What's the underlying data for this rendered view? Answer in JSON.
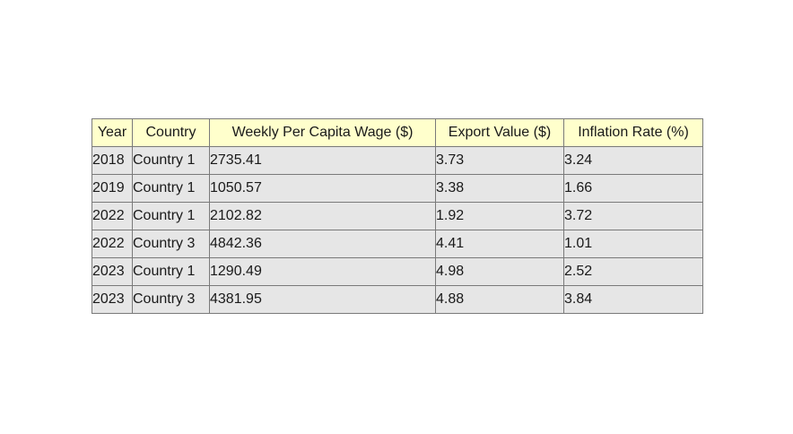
{
  "chart_data": {
    "type": "table",
    "columns": [
      "Year",
      "Country",
      "Weekly Per Capita Wage ($)",
      "Export Value ($)",
      "Inflation Rate (%)"
    ],
    "rows": [
      [
        "2018",
        "Country 1",
        "2735.41",
        "3.73",
        "3.24"
      ],
      [
        "2019",
        "Country 1",
        "1050.57",
        "3.38",
        "1.66"
      ],
      [
        "2022",
        "Country 1",
        "2102.82",
        "1.92",
        "3.72"
      ],
      [
        "2022",
        "Country 3",
        "4842.36",
        "4.41",
        "1.01"
      ],
      [
        "2023",
        "Country 1",
        "1290.49",
        "4.98",
        "2.52"
      ],
      [
        "2023",
        "Country 3",
        "4381.95",
        "4.88",
        "3.84"
      ]
    ],
    "colors": {
      "header_background": "#ffffcc",
      "cell_background": "#e6e6e6",
      "border": "#7a7a7a"
    }
  }
}
